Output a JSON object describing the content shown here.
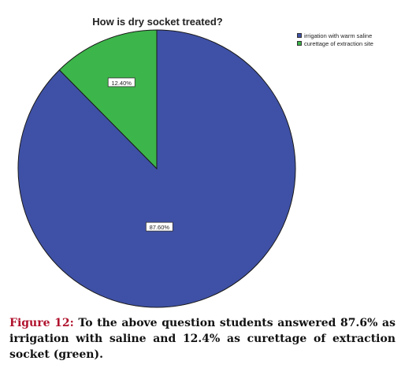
{
  "chart_data": {
    "type": "pie",
    "title": "How is dry socket treated?",
    "slices": [
      {
        "label": "irrigation with warm saline",
        "value": 87.6,
        "display": "87.60%",
        "color": "#3f51a6"
      },
      {
        "label": "curettage of extraction site",
        "value": 12.4,
        "display": "12.40%",
        "color": "#3cb54a"
      }
    ],
    "legend_position": "top-right"
  },
  "caption": {
    "label": "Figure 12:",
    "text": " To the above question students answered 87.6% as irrigation with saline and 12.4% as curettage of extraction socket (green)."
  }
}
